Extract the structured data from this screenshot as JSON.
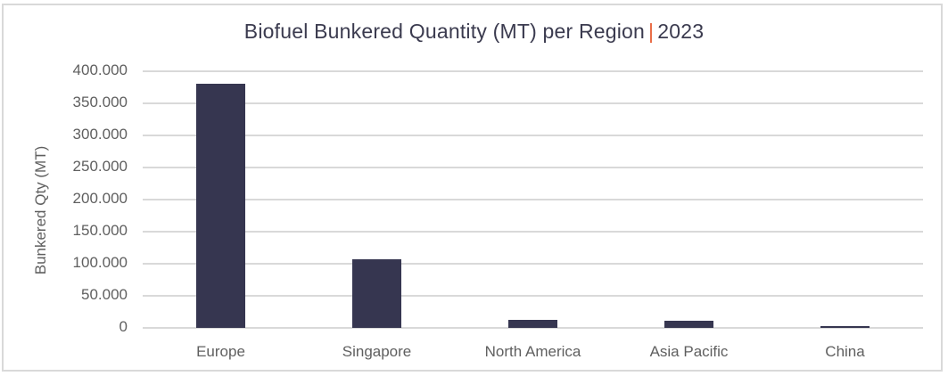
{
  "chart_data": {
    "type": "bar",
    "title": "Biofuel Bunkered Quantity (MT) per Region",
    "title_suffix": "2023",
    "title_separator": "|",
    "xlabel": "",
    "ylabel": "Bunkered Qty (MT)",
    "categories": [
      "Europe",
      "Singapore",
      "North America",
      "Asia Pacific",
      "China"
    ],
    "values": [
      380000,
      107000,
      12500,
      11000,
      3000
    ],
    "ylim": [
      0,
      400000
    ],
    "yticks": [
      "0",
      "50.000",
      "100.000",
      "150.000",
      "200.000",
      "250.000",
      "300.000",
      "350.000",
      "400.000"
    ],
    "grid": true,
    "legend": "none",
    "colors": {
      "bar": "#363650",
      "separator": "#e8643c",
      "grid": "#d9d9d9"
    }
  }
}
